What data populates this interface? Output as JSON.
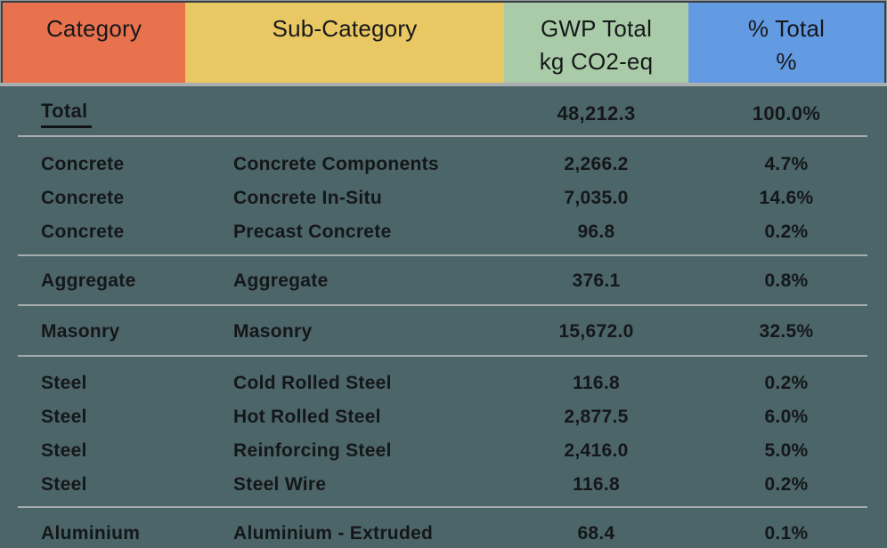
{
  "table": {
    "columns": [
      {
        "id": "category",
        "label": "Category",
        "sublabel": "",
        "color": "#E8724E"
      },
      {
        "id": "subcategory",
        "label": "Sub-Category",
        "sublabel": "",
        "color": "#E9C763"
      },
      {
        "id": "gwp_total",
        "label": "GWP Total",
        "sublabel": "kg CO2-eq",
        "color": "#A9CBA8"
      },
      {
        "id": "pct_total",
        "label": "% Total",
        "sublabel": "%",
        "color": "#639BE3"
      }
    ],
    "total_row": {
      "label": "Total",
      "gwp": "48,212.3",
      "pct": "100.0%"
    },
    "rows": [
      {
        "category": "Concrete",
        "subcategory": "Concrete Components",
        "gwp": "2,266.2",
        "pct": "4.7%"
      },
      {
        "category": "Concrete",
        "subcategory": "Concrete In-Situ",
        "gwp": "7,035.0",
        "pct": "14.6%"
      },
      {
        "category": "Concrete",
        "subcategory": "Precast Concrete",
        "gwp": "96.8",
        "pct": "0.2%"
      },
      {
        "category": "Aggregate",
        "subcategory": "Aggregate",
        "gwp": "376.1",
        "pct": "0.8%"
      },
      {
        "category": "Masonry",
        "subcategory": "Masonry",
        "gwp": "15,672.0",
        "pct": "32.5%"
      },
      {
        "category": "Steel",
        "subcategory": "Cold Rolled Steel",
        "gwp": "116.8",
        "pct": "0.2%"
      },
      {
        "category": "Steel",
        "subcategory": "Hot Rolled Steel",
        "gwp": "2,877.5",
        "pct": "6.0%"
      },
      {
        "category": "Steel",
        "subcategory": "Reinforcing Steel",
        "gwp": "2,416.0",
        "pct": "5.0%"
      },
      {
        "category": "Steel",
        "subcategory": "Steel Wire",
        "gwp": "116.8",
        "pct": "0.2%"
      },
      {
        "category": "Aluminium",
        "subcategory": "Aluminium - Extruded",
        "gwp": "68.4",
        "pct": "0.1%"
      }
    ]
  },
  "colors": {
    "background": "#4C6569",
    "header_category": "#E8724E",
    "header_subcategory": "#E9C763",
    "header_gwp": "#A9CBA8",
    "header_pct": "#639BE3",
    "divider": "#A7ACAE",
    "header_underline": "#A9AEAF",
    "text": "#141719"
  },
  "chart_data": {
    "type": "table",
    "title": "",
    "columns": [
      "Category",
      "Sub-Category",
      "GWP Total (kg CO2-eq)",
      "% Total (%)"
    ],
    "total": {
      "label": "Total",
      "gwp_total_kg_co2_eq": 48212.3,
      "pct_total": 100.0
    },
    "rows": [
      [
        "Concrete",
        "Concrete Components",
        2266.2,
        4.7
      ],
      [
        "Concrete",
        "Concrete In-Situ",
        7035.0,
        14.6
      ],
      [
        "Concrete",
        "Precast Concrete",
        96.8,
        0.2
      ],
      [
        "Aggregate",
        "Aggregate",
        376.1,
        0.8
      ],
      [
        "Masonry",
        "Masonry",
        15672.0,
        32.5
      ],
      [
        "Steel",
        "Cold Rolled Steel",
        116.8,
        0.2
      ],
      [
        "Steel",
        "Hot Rolled Steel",
        2877.5,
        6.0
      ],
      [
        "Steel",
        "Reinforcing Steel",
        2416.0,
        5.0
      ],
      [
        "Steel",
        "Steel Wire",
        116.8,
        0.2
      ],
      [
        "Aluminium",
        "Aluminium - Extruded",
        68.4,
        0.1
      ]
    ]
  }
}
